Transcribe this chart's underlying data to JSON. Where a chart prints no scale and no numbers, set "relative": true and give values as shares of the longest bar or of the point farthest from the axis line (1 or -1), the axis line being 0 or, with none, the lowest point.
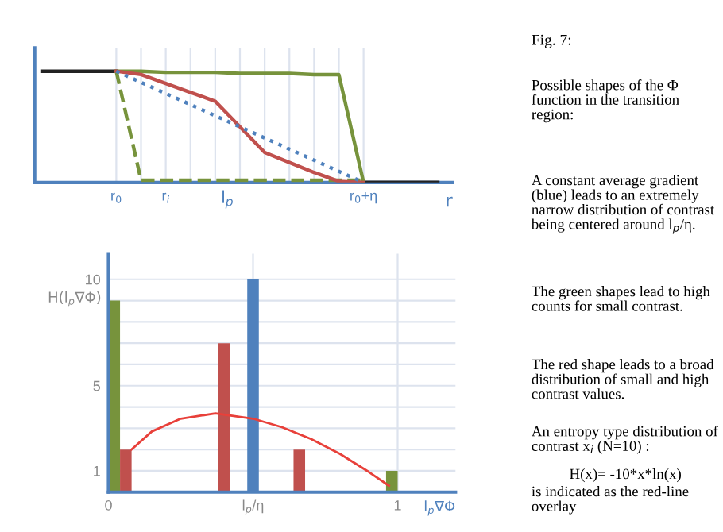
{
  "chart_data": [
    {
      "type": "line",
      "relative": true,
      "xlabel": "r",
      "categories": [
        null,
        null,
        null,
        "r$_{0}$",
        null,
        "r$_{i}$",
        null,
        null,
        null,
        null,
        null,
        null,
        null,
        "r$_{0}$+η",
        null,
        null,
        null
      ],
      "annotations": [
        "l$_{p}$"
      ],
      "tick_labels": "x",
      "grid": "x",
      "legend": false,
      "series": [
        {
          "color": "#222222",
          "values": [
            1,
            1,
            1,
            1,
            null,
            null,
            null,
            null,
            null,
            null,
            null,
            null,
            null,
            null,
            null,
            null,
            null
          ]
        },
        {
          "color": "#222222",
          "values": [
            null,
            null,
            null,
            null,
            null,
            null,
            null,
            null,
            null,
            null,
            null,
            null,
            null,
            0,
            0,
            0,
            0
          ]
        },
        {
          "color": "#77933c",
          "values": [
            null,
            null,
            null,
            1,
            1,
            0.99,
            0.99,
            0.99,
            0.98,
            0.98,
            0.98,
            0.97,
            0.97,
            0,
            null,
            null,
            null
          ]
        },
        {
          "color": "#77933c",
          "line_style": "dashed",
          "values": [
            null,
            null,
            null,
            1,
            0.02,
            0.02,
            0.02,
            0.02,
            0.02,
            0.02,
            0.02,
            0.02,
            0.02,
            0.02,
            null,
            null,
            null
          ]
        },
        {
          "color": "#c0504d",
          "values": [
            null,
            null,
            null,
            1,
            0.97,
            0.89,
            0.81,
            0.73,
            0.5,
            0.27,
            0.18,
            0.09,
            0.01,
            0,
            null,
            null,
            null
          ]
        },
        {
          "color": "#4f81bd",
          "line_style": "dotted",
          "values": [
            null,
            null,
            null,
            1,
            0.9,
            0.8,
            0.7,
            0.6,
            0.5,
            0.4,
            0.3,
            0.2,
            0.1,
            0,
            null,
            null,
            null
          ]
        }
      ]
    },
    {
      "type": "bar",
      "xlabel": "l$_{p}$∇Φ",
      "ylabel": "H(l$_{p}$∇Φ)",
      "xlim": [
        0,
        1.2
      ],
      "ylim": [
        0,
        11.2
      ],
      "xticks": [
        0,
        {
          "value": 0.5,
          "label": "l$_{p}$/η"
        },
        1
      ],
      "yticks": [
        {
          "value": 0,
          "label": null
        },
        1,
        {
          "value": 2,
          "label": null
        },
        {
          "value": 3,
          "label": null
        },
        {
          "value": 4,
          "label": null
        },
        5,
        {
          "value": 6,
          "label": null
        },
        {
          "value": 7,
          "label": null
        },
        {
          "value": 8,
          "label": null
        },
        {
          "value": 9,
          "label": null
        },
        10
      ],
      "grid": true,
      "legend": false,
      "series": [
        {
          "color": "#77933c",
          "x": [
            0.02,
            0.98
          ],
          "values": [
            9,
            1
          ]
        },
        {
          "color": "#c0504d",
          "x": [
            0.06,
            0.4,
            0.66
          ],
          "values": [
            2,
            7,
            2
          ]
        },
        {
          "color": "#4f81bd",
          "x": [
            0.5
          ],
          "values": [
            10
          ]
        },
        {
          "type": "line",
          "color": "#e8403a",
          "x": [
            0.08,
            0.15,
            0.25,
            0.37,
            0.5,
            0.6,
            0.7,
            0.8,
            0.9,
            0.97
          ],
          "values": [
            2.0,
            2.85,
            3.45,
            3.7,
            3.45,
            3.05,
            2.5,
            1.8,
            0.95,
            0.3
          ]
        }
      ]
    },
    {
      "type": "other",
      "title": "Fig. 7:",
      "annotations": [
        "Possible shapes of the Φ function in the transition region:",
        "A constant average gradient (blue) leads to an extremely narrow distribution of contrast being centered around l$_{p}$/η.",
        "The green shapes lead to high counts for small contrast.",
        "The red shape leads to a broad distribution of small and high contrast values.",
        "An entropy type distribution of contrast x$_{i}$ (N=10) :",
        "H(x)= -10*x*ln(x)",
        "is indicated as the red-line overlay"
      ]
    }
  ]
}
